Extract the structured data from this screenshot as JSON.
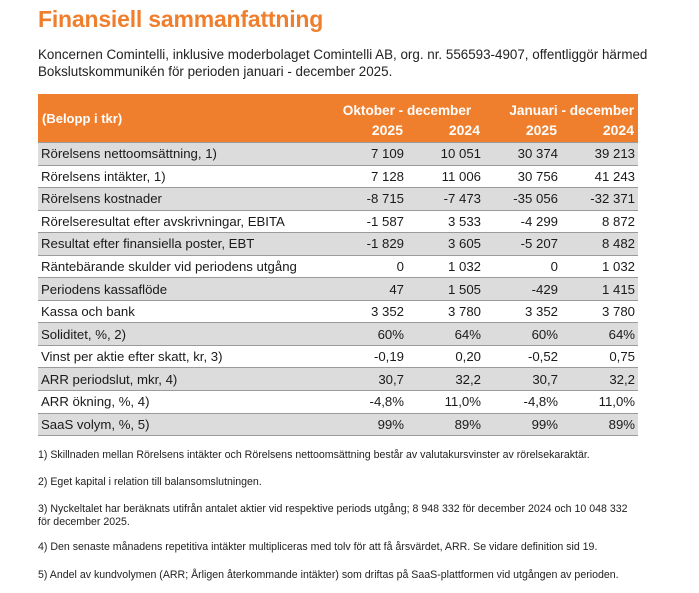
{
  "title": "Finansiell sammanfattning",
  "intro": "Koncernen Comintelli, inklusive moderbolaget Comintelli AB, org. nr. 556593-4907, offentliggör härmed Bokslutskommunikén för perioden januari - december 2025.",
  "colors": {
    "accent": "#f07f2d",
    "row_shade": "#dcdcdc"
  },
  "table": {
    "header_label": "(Belopp i tkr)",
    "period1": "Oktober - december",
    "period2": "Januari - december",
    "years": [
      "2025",
      "2024",
      "2025",
      "2024"
    ],
    "rows": [
      {
        "label": "Rörelsens nettoomsättning, 1)",
        "v1": "7 109",
        "v2": "10 051",
        "v3": "30 374",
        "v4": "39 213",
        "shade": true
      },
      {
        "label": "Rörelsens intäkter, 1)",
        "v1": "7 128",
        "v2": "11 006",
        "v3": "30 756",
        "v4": "41 243",
        "shade": false
      },
      {
        "label": "Rörelsens kostnader",
        "v1": "-8 715",
        "v2": "-7 473",
        "v3": "-35 056",
        "v4": "-32 371",
        "shade": true
      },
      {
        "label": "Rörelseresultat efter avskrivningar, EBITA",
        "v1": "-1 587",
        "v2": "3 533",
        "v3": "-4 299",
        "v4": "8 872",
        "shade": false
      },
      {
        "label": "Resultat efter finansiella poster, EBT",
        "v1": "-1 829",
        "v2": "3 605",
        "v3": "-5 207",
        "v4": "8 482",
        "shade": true
      },
      {
        "label": "Räntebärande skulder vid periodens utgång",
        "v1": "0",
        "v2": "1 032",
        "v3": "0",
        "v4": "1 032",
        "shade": false
      },
      {
        "label": "Periodens kassaflöde",
        "v1": "47",
        "v2": "1 505",
        "v3": "-429",
        "v4": "1 415",
        "shade": true
      },
      {
        "label": "Kassa och bank",
        "v1": "3 352",
        "v2": "3 780",
        "v3": "3 352",
        "v4": "3 780",
        "shade": false
      },
      {
        "label": "Soliditet, %, 2)",
        "v1": "60%",
        "v2": "64%",
        "v3": "60%",
        "v4": "64%",
        "shade": true
      },
      {
        "label": "Vinst per aktie efter skatt, kr, 3)",
        "v1": "-0,19",
        "v2": "0,20",
        "v3": "-0,52",
        "v4": "0,75",
        "shade": false
      },
      {
        "label": "ARR periodslut, mkr, 4)",
        "v1": "30,7",
        "v2": "32,2",
        "v3": "30,7",
        "v4": "32,2",
        "shade": true
      },
      {
        "label": "ARR ökning, %, 4)",
        "v1": "-4,8%",
        "v2": "11,0%",
        "v3": "-4,8%",
        "v4": "11,0%",
        "shade": false
      },
      {
        "label": "SaaS volym, %, 5)",
        "v1": "99%",
        "v2": "89%",
        "v3": "99%",
        "v4": "89%",
        "shade": true
      }
    ]
  },
  "footnotes": [
    "1) Skillnaden mellan Rörelsens intäkter och Rörelsens nettoomsättning består av valutakursvinster av rörelsekaraktär.",
    "2) Eget kapital i relation till balansomslutningen.",
    "3) Nyckeltalet har beräknats utifrån antalet aktier vid respektive periods utgång; 8 948 332 för december 2024 och 10 048 332 för december 2025.",
    "4) Den senaste månadens repetitiva intäkter multipliceras med tolv för att få årsvärdet, ARR. Se vidare definition sid 19.",
    "5) Andel av kundvolymen (ARR; Årligen återkommande intäkter) som driftas på SaaS-plattformen vid utgången av perioden."
  ]
}
